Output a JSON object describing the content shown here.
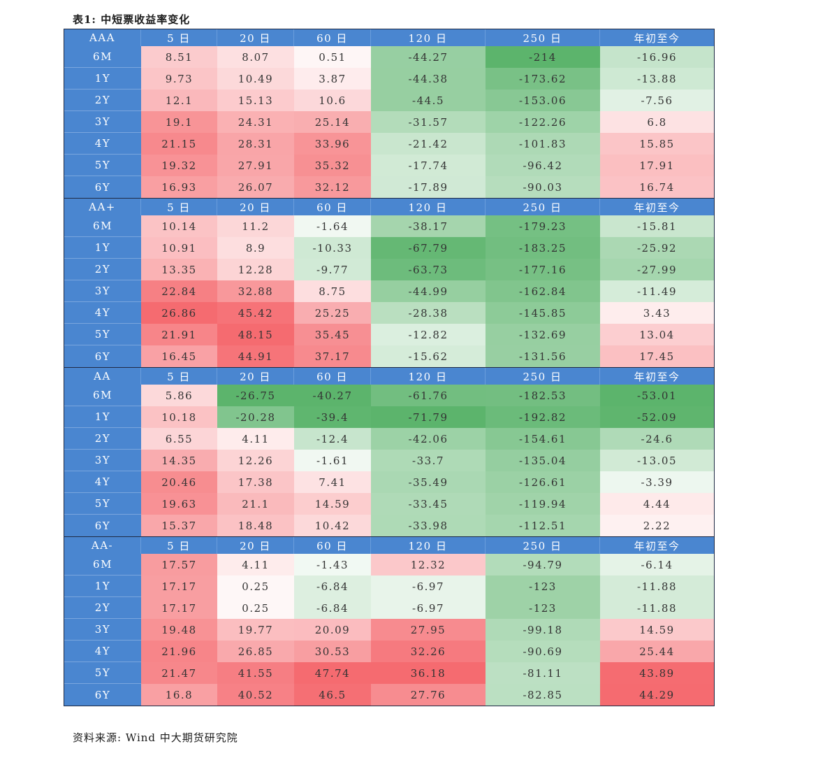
{
  "title": "表1:  中短票收益率变化",
  "source": "资料来源: Wind 中大期货研究院",
  "columns": [
    "5 日",
    "20 日",
    "60 日",
    "120 日",
    "250 日",
    "年初至今"
  ],
  "sections": [
    {
      "grade": "AAA",
      "rows": [
        {
          "tenor": "6M",
          "values": [
            "8.51",
            "8.07",
            "0.51",
            "-44.27",
            "-214",
            "-16.96"
          ]
        },
        {
          "tenor": "1Y",
          "values": [
            "9.73",
            "10.49",
            "3.87",
            "-44.38",
            "-173.62",
            "-13.88"
          ]
        },
        {
          "tenor": "2Y",
          "values": [
            "12.1",
            "15.13",
            "10.6",
            "-44.5",
            "-153.06",
            "-7.56"
          ]
        },
        {
          "tenor": "3Y",
          "values": [
            "19.1",
            "24.31",
            "25.14",
            "-31.57",
            "-122.26",
            "6.8"
          ]
        },
        {
          "tenor": "4Y",
          "values": [
            "21.15",
            "28.31",
            "33.96",
            "-21.42",
            "-101.83",
            "15.85"
          ]
        },
        {
          "tenor": "5Y",
          "values": [
            "19.32",
            "27.91",
            "35.32",
            "-17.74",
            "-96.42",
            "17.91"
          ]
        },
        {
          "tenor": "6Y",
          "values": [
            "16.93",
            "26.07",
            "32.12",
            "-17.89",
            "-90.03",
            "16.74"
          ]
        }
      ]
    },
    {
      "grade": "AA+",
      "rows": [
        {
          "tenor": "6M",
          "values": [
            "10.14",
            "11.2",
            "-1.64",
            "-38.17",
            "-179.23",
            "-15.81"
          ]
        },
        {
          "tenor": "1Y",
          "values": [
            "10.91",
            "8.9",
            "-10.33",
            "-67.79",
            "-183.25",
            "-25.92"
          ]
        },
        {
          "tenor": "2Y",
          "values": [
            "13.35",
            "12.28",
            "-9.77",
            "-63.73",
            "-177.16",
            "-27.99"
          ]
        },
        {
          "tenor": "3Y",
          "values": [
            "22.84",
            "32.88",
            "8.75",
            "-44.99",
            "-162.84",
            "-11.49"
          ]
        },
        {
          "tenor": "4Y",
          "values": [
            "26.86",
            "45.42",
            "25.25",
            "-28.38",
            "-145.85",
            "3.43"
          ]
        },
        {
          "tenor": "5Y",
          "values": [
            "21.91",
            "48.15",
            "35.45",
            "-12.82",
            "-132.69",
            "13.04"
          ]
        },
        {
          "tenor": "6Y",
          "values": [
            "16.45",
            "44.91",
            "37.17",
            "-15.62",
            "-131.56",
            "17.45"
          ]
        }
      ]
    },
    {
      "grade": "AA",
      "rows": [
        {
          "tenor": "6M",
          "values": [
            "5.86",
            "-26.75",
            "-40.27",
            "-61.76",
            "-182.53",
            "-53.01"
          ]
        },
        {
          "tenor": "1Y",
          "values": [
            "10.18",
            "-20.28",
            "-39.4",
            "-71.79",
            "-192.82",
            "-52.09"
          ]
        },
        {
          "tenor": "2Y",
          "values": [
            "6.55",
            "4.11",
            "-12.4",
            "-42.06",
            "-154.61",
            "-24.6"
          ]
        },
        {
          "tenor": "3Y",
          "values": [
            "14.35",
            "12.26",
            "-1.61",
            "-33.7",
            "-135.04",
            "-13.05"
          ]
        },
        {
          "tenor": "4Y",
          "values": [
            "20.46",
            "17.38",
            "7.41",
            "-35.49",
            "-126.61",
            "-3.39"
          ]
        },
        {
          "tenor": "5Y",
          "values": [
            "19.63",
            "21.1",
            "14.59",
            "-33.45",
            "-119.94",
            "4.44"
          ]
        },
        {
          "tenor": "6Y",
          "values": [
            "15.37",
            "18.48",
            "10.42",
            "-33.98",
            "-112.51",
            "2.22"
          ]
        }
      ]
    },
    {
      "grade": "AA-",
      "rows": [
        {
          "tenor": "6M",
          "values": [
            "17.57",
            "4.11",
            "-1.43",
            "12.32",
            "-94.79",
            "-6.14"
          ]
        },
        {
          "tenor": "1Y",
          "values": [
            "17.17",
            "0.25",
            "-6.84",
            "-6.97",
            "-123",
            "-11.88"
          ]
        },
        {
          "tenor": "2Y",
          "values": [
            "17.17",
            "0.25",
            "-6.84",
            "-6.97",
            "-123",
            "-11.88"
          ]
        },
        {
          "tenor": "3Y",
          "values": [
            "19.48",
            "19.77",
            "20.09",
            "27.95",
            "-99.18",
            "14.59"
          ]
        },
        {
          "tenor": "4Y",
          "values": [
            "21.96",
            "26.85",
            "30.53",
            "32.26",
            "-90.69",
            "25.44"
          ]
        },
        {
          "tenor": "5Y",
          "values": [
            "21.47",
            "41.55",
            "47.74",
            "36.18",
            "-81.11",
            "43.89"
          ]
        },
        {
          "tenor": "6Y",
          "values": [
            "16.8",
            "40.52",
            "46.5",
            "27.76",
            "-82.85",
            "44.29"
          ]
        }
      ]
    }
  ],
  "colors": {
    "header_blue": "#4a86d0",
    "positive_max": "#f56b70",
    "negative_max": "#5cb46c"
  }
}
